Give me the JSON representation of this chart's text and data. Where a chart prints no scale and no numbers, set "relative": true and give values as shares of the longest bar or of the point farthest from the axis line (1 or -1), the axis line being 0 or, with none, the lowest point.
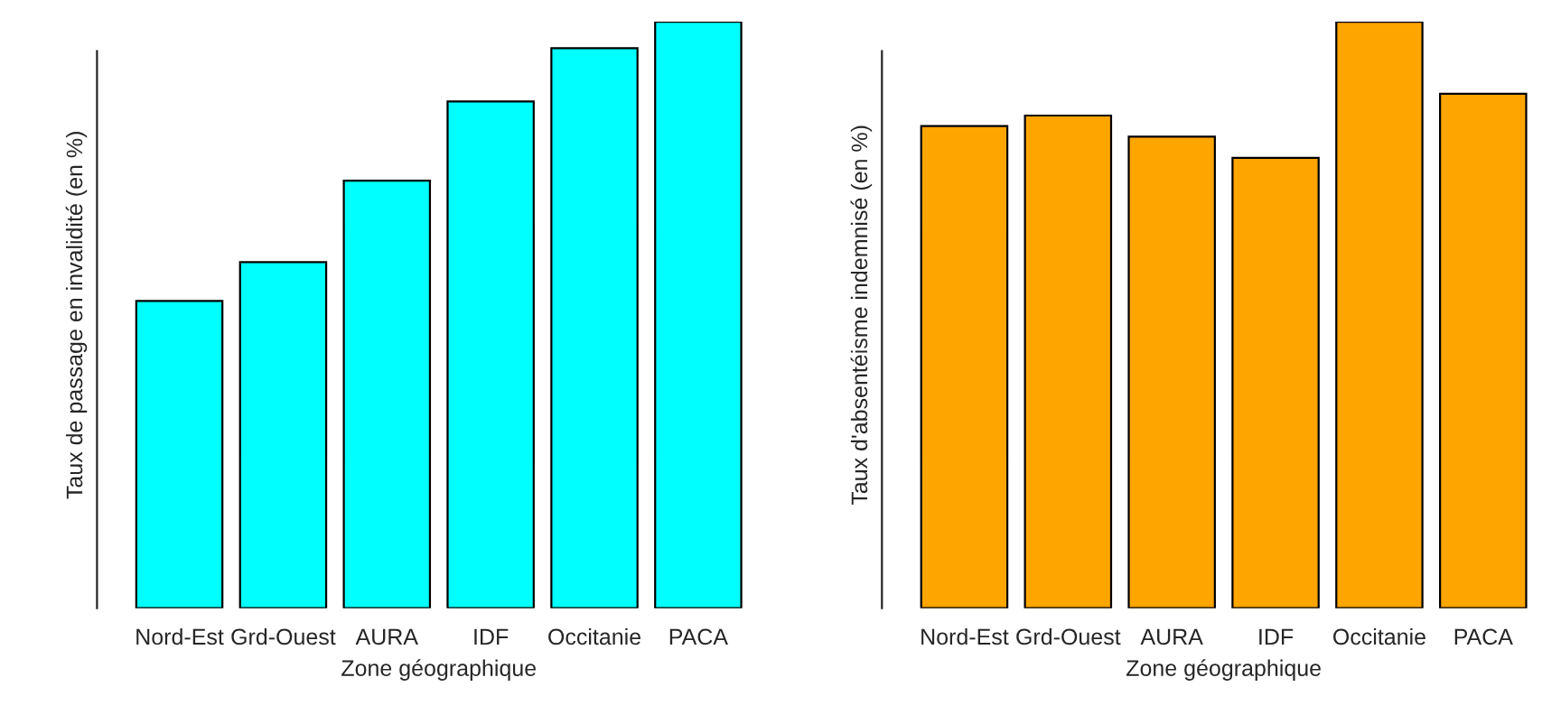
{
  "chart_data": [
    {
      "type": "bar",
      "relative": true,
      "xlabel": "Zone géographique",
      "ylabel": "Taux de passage en invalidité (en %)",
      "categories": [
        "Nord-Est",
        "Grd-Ouest",
        "AURA",
        "IDF",
        "Occitanie",
        "PACA"
      ],
      "series": [
        {
          "color": "#00ffff",
          "values": [
            0.524,
            0.59,
            0.729,
            0.864,
            0.955,
            1
          ]
        }
      ],
      "grid": false,
      "legend": false
    },
    {
      "type": "bar",
      "relative": true,
      "xlabel": "Zone géographique",
      "ylabel": "Taux d'absentéisme indemnisé (en %)",
      "categories": [
        "Nord-Est",
        "Grd-Ouest",
        "AURA",
        "IDF",
        "Occitanie",
        "PACA"
      ],
      "series": [
        {
          "color": "#ffa500",
          "values": [
            0.822,
            0.84,
            0.804,
            0.768,
            1,
            0.877
          ]
        }
      ],
      "grid": false,
      "legend": false
    }
  ]
}
